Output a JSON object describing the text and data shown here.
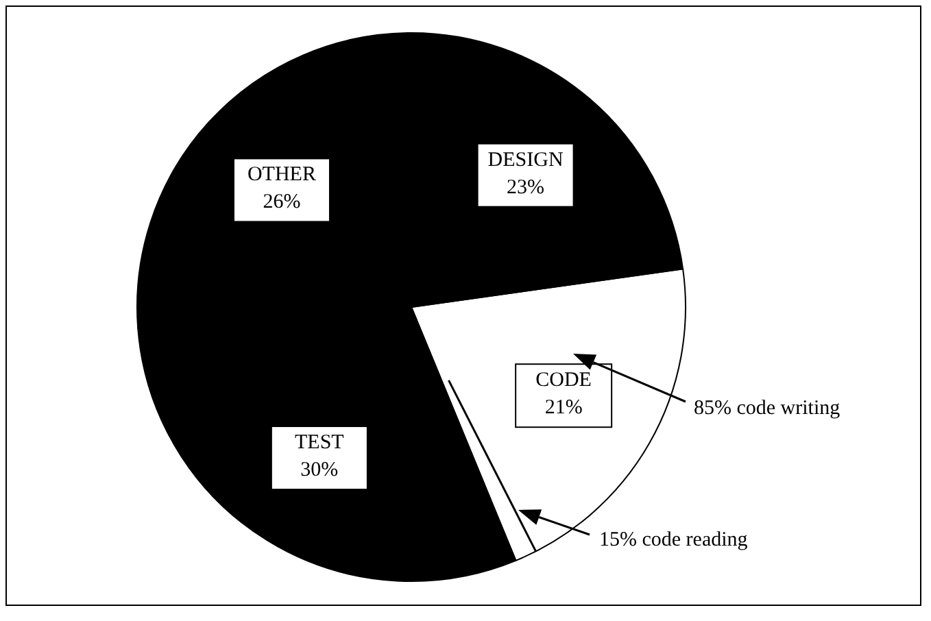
{
  "chart_data": {
    "type": "pie",
    "categories": [
      "CODE",
      "TEST",
      "OTHER",
      "DESIGN"
    ],
    "values": [
      21,
      30,
      26,
      23
    ],
    "value_labels": [
      "21%",
      "30%",
      "26%",
      "23%"
    ],
    "colors": [
      "#ffffff",
      "#000000",
      "#000000",
      "#000000"
    ],
    "annotations": [
      "85% code writing",
      "15% code reading"
    ]
  }
}
